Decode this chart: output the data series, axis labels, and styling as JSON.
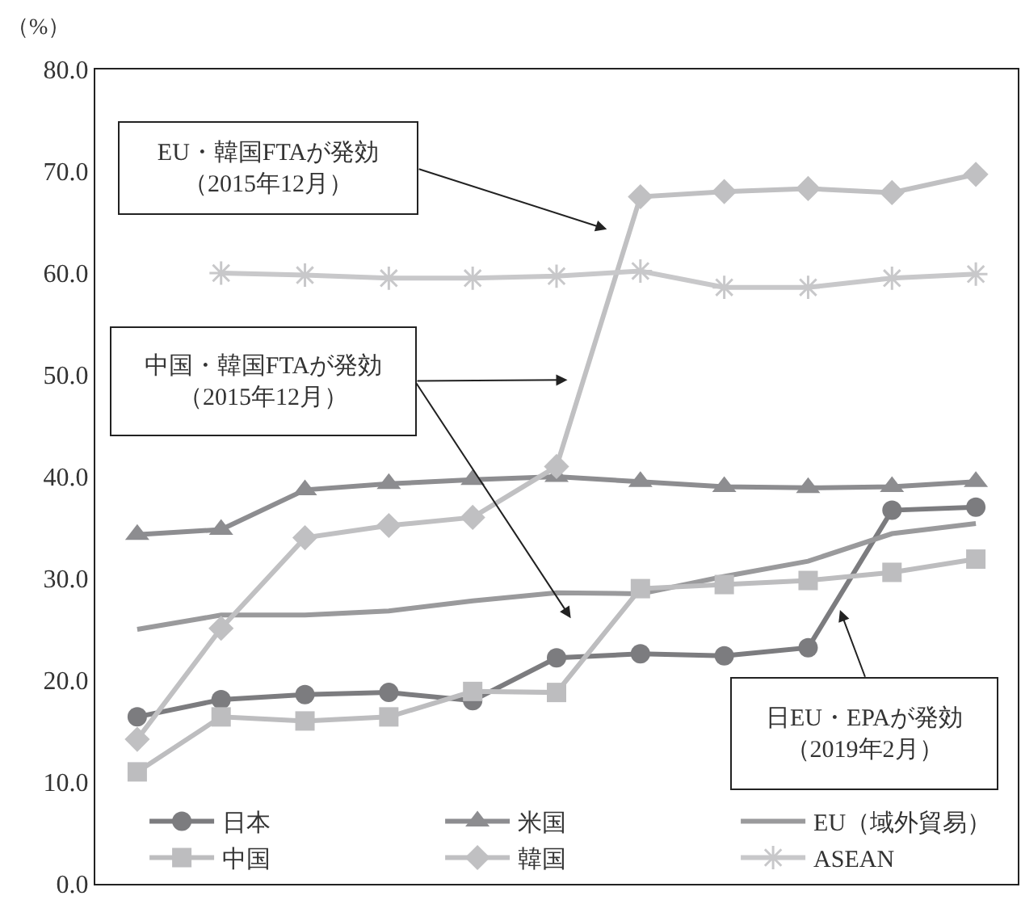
{
  "chart_data": {
    "type": "line",
    "ylabel": "（%）",
    "categories": [
      null,
      null,
      null,
      null,
      null,
      null,
      null,
      null,
      null,
      null,
      null
    ],
    "ylim": [
      0,
      80
    ],
    "yticks": [
      {
        "value": 0,
        "label": "0.0"
      },
      {
        "value": 10,
        "label": "10.0"
      },
      {
        "value": 20,
        "label": "20.0"
      },
      {
        "value": 30,
        "label": "30.0"
      },
      {
        "value": 40,
        "label": "40.0"
      },
      {
        "value": 50,
        "label": "50.0"
      },
      {
        "value": 60,
        "label": "60.0"
      },
      {
        "value": 70,
        "label": "70.0"
      },
      {
        "value": 80,
        "label": "80.0"
      }
    ],
    "tick_labels": "y",
    "grid": false,
    "legend": "bottom",
    "annotations": [
      "EU・韓国FTAが発効（2015年12月）",
      "中国・韓国FTAが発効（2015年12月）",
      "日EU・EPAが発効（2019年2月）"
    ],
    "series": [
      {
        "name": "日本",
        "color": "#7c7c7f",
        "marker": "circle",
        "values": [
          16.4,
          18.1,
          18.6,
          18.8,
          18.0,
          22.2,
          22.6,
          22.4,
          23.2,
          36.7,
          37.0
        ]
      },
      {
        "name": "米国",
        "color": "#8d8d90",
        "marker": "triangle",
        "values": [
          34.3,
          34.8,
          38.7,
          39.3,
          39.7,
          40.0,
          39.5,
          39.0,
          38.9,
          39.0,
          39.5
        ]
      },
      {
        "name": "EU（域外貿易）",
        "color": "#9a9a9c",
        "marker": "none",
        "values": [
          25.0,
          26.4,
          26.4,
          26.8,
          27.8,
          28.6,
          28.5,
          30.2,
          31.7,
          34.4,
          35.4
        ]
      },
      {
        "name": "中国",
        "color": "#bdbdbf",
        "marker": "square",
        "values": [
          11.0,
          16.4,
          16.0,
          16.4,
          18.9,
          18.8,
          29.0,
          29.4,
          29.8,
          30.6,
          31.9
        ]
      },
      {
        "name": "韓国",
        "color": "#c0c0c2",
        "marker": "diamond",
        "values": [
          14.2,
          25.1,
          34.0,
          35.2,
          36.0,
          41.0,
          67.5,
          68.0,
          68.3,
          67.9,
          69.7
        ]
      },
      {
        "name": "ASEAN",
        "color": "#c8c8ca",
        "marker": "cross",
        "values": [
          null,
          60.0,
          59.8,
          59.5,
          59.5,
          59.7,
          60.2,
          58.6,
          58.6,
          59.5,
          59.9
        ]
      }
    ]
  }
}
